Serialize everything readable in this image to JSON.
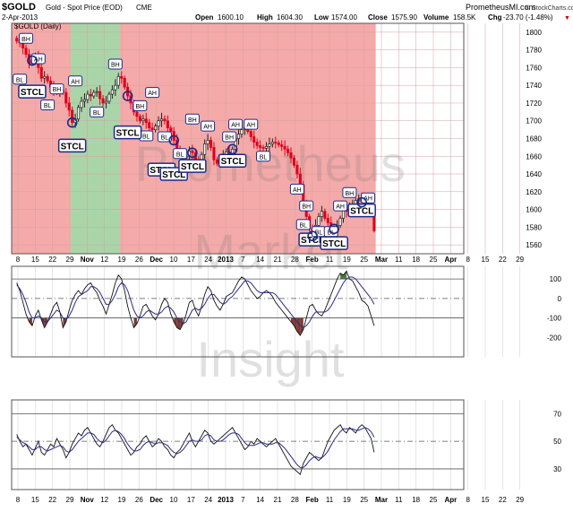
{
  "header": {
    "symbol": "$GOLD",
    "description": "Gold - Spot Price (EOD)",
    "exchange": "CME",
    "date": "2-Apr-2013",
    "open_label": "Open",
    "open": "1600.10",
    "high_label": "High",
    "high": "1604.30",
    "low_label": "Low",
    "low": "1574.00",
    "close_label": "Close",
    "close": "1575.90",
    "volume_label": "Volume",
    "volume": "158.5K",
    "chg_label": "Chg",
    "chg": "-23.70 (-1.48%)",
    "chg_arrow": "▼",
    "legend": "$GOLD (Daily)",
    "site": "PrometheusMI.com",
    "copyright": "© StockCharts.com"
  },
  "watermark": [
    "Prometheus",
    "Market",
    "Insight"
  ],
  "colors": {
    "bear_zone": "#f4aaa9",
    "bull_zone": "#a9d5a9",
    "up_candle": "#222222",
    "down_candle": "#e0001a",
    "cci_line": "#111111",
    "signal_line": "#2a2a8a",
    "fill_high": "#4a7a3a",
    "fill_low": "#7a3a32",
    "marker": "#1a2a8a",
    "chg_red": "#d00000"
  },
  "chart_data": [
    {
      "type": "candlestick",
      "title": "$GOLD (Daily)",
      "ylim": [
        1550,
        1810
      ],
      "y_ticks": [
        1560,
        1580,
        1600,
        1620,
        1640,
        1660,
        1680,
        1700,
        1720,
        1740,
        1760,
        1780,
        1800
      ],
      "x_tick_labels": [
        "8",
        "15",
        "22",
        "29",
        "Nov",
        "12",
        "19",
        "26",
        "Dec",
        "10",
        "17",
        "24",
        "2013",
        "7",
        "14",
        "21",
        "28",
        "Feb",
        "11",
        "19",
        "25",
        "Mar",
        "11",
        "18",
        "25",
        "Apr",
        "8",
        "15",
        "22",
        "29"
      ],
      "bold_x_ticks": [
        "Nov",
        "Dec",
        "2013",
        "Feb",
        "Mar",
        "Apr"
      ],
      "zones": [
        {
          "state": "bear",
          "from_day": 0,
          "to_day": 18
        },
        {
          "state": "bull",
          "from_day": 18,
          "to_day": 34
        },
        {
          "state": "bear",
          "from_day": 34,
          "to_day": 117
        }
      ],
      "closes": [
        1790,
        1788,
        1782,
        1775,
        1765,
        1768,
        1772,
        1760,
        1748,
        1750,
        1745,
        1738,
        1735,
        1733,
        1735,
        1732,
        1720,
        1712,
        1698,
        1702,
        1715,
        1722,
        1724,
        1730,
        1728,
        1732,
        1733,
        1725,
        1720,
        1722,
        1730,
        1735,
        1740,
        1750,
        1748,
        1738,
        1728,
        1720,
        1710,
        1705,
        1700,
        1702,
        1698,
        1692,
        1690,
        1694,
        1700,
        1702,
        1700,
        1692,
        1688,
        1678,
        1668,
        1662,
        1658,
        1660,
        1666,
        1664,
        1654,
        1650,
        1662,
        1674,
        1678,
        1670,
        1656,
        1652,
        1654,
        1660,
        1665,
        1662,
        1668,
        1680,
        1685,
        1690,
        1692,
        1688,
        1682,
        1676,
        1672,
        1670,
        1669,
        1671,
        1674,
        1676,
        1675,
        1673,
        1671,
        1668,
        1664,
        1658,
        1650,
        1640,
        1628,
        1605,
        1592,
        1578,
        1570,
        1582,
        1592,
        1598,
        1590,
        1585,
        1580,
        1578,
        1582,
        1590,
        1600,
        1598,
        1604,
        1605,
        1610,
        1612,
        1608,
        1602,
        1598,
        1600,
        1576
      ],
      "last_bar": {
        "open": 1600.1,
        "high": 1604.3,
        "low": 1574.0,
        "close": 1575.9
      },
      "annotations": [
        {
          "label": "BH",
          "day": 3,
          "price": 1793
        },
        {
          "label": "AH",
          "day": 7,
          "price": 1770
        },
        {
          "label": "BL",
          "day": 1,
          "price": 1747
        },
        {
          "label": "STCL",
          "day": 5,
          "price": 1733
        },
        {
          "label": "BH",
          "day": 13,
          "price": 1736
        },
        {
          "label": "AH",
          "day": 19,
          "price": 1745
        },
        {
          "label": "BL",
          "day": 10,
          "price": 1718
        },
        {
          "label": "STCL",
          "day": 18,
          "price": 1672
        },
        {
          "label": "BH",
          "day": 32,
          "price": 1764
        },
        {
          "label": "BL",
          "day": 26,
          "price": 1710
        },
        {
          "label": "AH",
          "day": 44,
          "price": 1732
        },
        {
          "label": "BH",
          "day": 40,
          "price": 1717
        },
        {
          "label": "BL",
          "day": 42,
          "price": 1683
        },
        {
          "label": "STCL",
          "day": 36,
          "price": 1687
        },
        {
          "label": "BL",
          "day": 48,
          "price": 1682
        },
        {
          "label": "STCL",
          "day": 47,
          "price": 1645
        },
        {
          "label": "BL",
          "day": 53,
          "price": 1663
        },
        {
          "label": "STCL",
          "day": 51,
          "price": 1640
        },
        {
          "label": "BH",
          "day": 57,
          "price": 1702
        },
        {
          "label": "AH",
          "day": 62,
          "price": 1694
        },
        {
          "label": "AH",
          "day": 71,
          "price": 1696
        },
        {
          "label": "AH",
          "day": 76,
          "price": 1696
        },
        {
          "label": "STCL",
          "day": 57,
          "price": 1649
        },
        {
          "label": "BH",
          "day": 69,
          "price": 1682
        },
        {
          "label": "BL",
          "day": 80,
          "price": 1660
        },
        {
          "label": "STCL",
          "day": 70,
          "price": 1655
        },
        {
          "label": "AH",
          "day": 91,
          "price": 1623
        },
        {
          "label": "BL",
          "day": 93,
          "price": 1583
        },
        {
          "label": "STCL",
          "day": 96,
          "price": 1566
        },
        {
          "label": "BH",
          "day": 94,
          "price": 1604
        },
        {
          "label": "BL",
          "day": 98,
          "price": 1575
        },
        {
          "label": "BL",
          "day": 102,
          "price": 1575
        },
        {
          "label": "STCL",
          "day": 103,
          "price": 1562
        },
        {
          "label": "AH",
          "day": 105,
          "price": 1604
        },
        {
          "label": "BH",
          "day": 108,
          "price": 1619
        },
        {
          "label": "AH",
          "day": 114,
          "price": 1613
        },
        {
          "label": "STCL",
          "day": 112,
          "price": 1599
        }
      ]
    },
    {
      "type": "line",
      "title": "",
      "ylim": [
        -300,
        165
      ],
      "y_ticks": [
        100,
        0,
        -100,
        -200
      ],
      "reference_lines": [
        100,
        0,
        -100
      ],
      "series": [
        {
          "name": "",
          "values": [
            80,
            40,
            -20,
            -80,
            -120,
            -140,
            -90,
            -60,
            -110,
            -150,
            -120,
            -80,
            -40,
            -20,
            -70,
            -150,
            -120,
            -60,
            -10,
            20,
            40,
            20,
            50,
            70,
            80,
            50,
            30,
            -10,
            -40,
            -80,
            -30,
            20,
            80,
            120,
            100,
            40,
            -40,
            -100,
            -150,
            -130,
            -90,
            -40,
            -30,
            -60,
            -90,
            -110,
            -80,
            -30,
            0,
            -20,
            -80,
            -120,
            -150,
            -160,
            -130,
            -80,
            -20,
            -10,
            -60,
            -90,
            -40,
            20,
            60,
            40,
            -10,
            -40,
            -60,
            -30,
            10,
            20,
            30,
            60,
            90,
            110,
            100,
            70,
            40,
            20,
            0,
            10,
            30,
            40,
            30,
            10,
            -20,
            -40,
            -60,
            -80,
            -100,
            -120,
            -140,
            -170,
            -190,
            -160,
            -100,
            -40,
            -30,
            -60,
            -80,
            -90,
            -60,
            -20,
            20,
            60,
            100,
            130,
            120,
            140,
            100,
            90,
            60,
            30,
            -10,
            -20,
            -40,
            -90,
            -140
          ]
        },
        {
          "name": "",
          "values": [
            70,
            50,
            20,
            -20,
            -70,
            -100,
            -100,
            -90,
            -100,
            -120,
            -120,
            -100,
            -80,
            -60,
            -70,
            -100,
            -110,
            -90,
            -60,
            -20,
            10,
            20,
            30,
            40,
            60,
            60,
            50,
            30,
            0,
            -30,
            -30,
            -10,
            20,
            60,
            80,
            70,
            40,
            -10,
            -60,
            -90,
            -100,
            -90,
            -70,
            -60,
            -70,
            -80,
            -80,
            -70,
            -50,
            -40,
            -50,
            -70,
            -100,
            -120,
            -130,
            -120,
            -90,
            -60,
            -50,
            -60,
            -50,
            -30,
            0,
            20,
            20,
            0,
            -20,
            -30,
            -20,
            0,
            10,
            30,
            50,
            70,
            90,
            90,
            80,
            60,
            40,
            30,
            30,
            30,
            30,
            30,
            20,
            0,
            -20,
            -40,
            -60,
            -80,
            -100,
            -120,
            -140,
            -150,
            -140,
            -120,
            -90,
            -70,
            -70,
            -70,
            -70,
            -60,
            -40,
            -10,
            20,
            50,
            80,
            100,
            110,
            110,
            100,
            80,
            60,
            40,
            20,
            0,
            -30
          ]
        }
      ]
    },
    {
      "type": "line",
      "title": "",
      "ylim": [
        15,
        80
      ],
      "y_ticks": [
        70,
        50,
        30
      ],
      "reference_lines": [
        70,
        50,
        30
      ],
      "series": [
        {
          "name": "",
          "values": [
            55,
            50,
            46,
            48,
            44,
            40,
            45,
            50,
            42,
            40,
            44,
            48,
            46,
            52,
            48,
            44,
            38,
            42,
            48,
            52,
            56,
            54,
            58,
            60,
            56,
            52,
            48,
            46,
            50,
            55,
            60,
            62,
            58,
            56,
            52,
            48,
            44,
            40,
            42,
            46,
            48,
            52,
            54,
            50,
            46,
            48,
            52,
            50,
            46,
            44,
            40,
            38,
            42,
            44,
            48,
            52,
            56,
            50,
            46,
            50,
            54,
            58,
            56,
            50,
            48,
            50,
            52,
            54,
            56,
            58,
            60,
            56,
            52,
            48,
            44,
            46,
            50,
            48,
            52,
            50,
            48,
            46,
            48,
            50,
            52,
            48,
            44,
            40,
            36,
            32,
            30,
            28,
            26,
            34,
            38,
            42,
            40,
            38,
            36,
            38,
            44,
            50,
            54,
            58,
            60,
            62,
            58,
            56,
            60,
            58,
            56,
            60,
            62,
            60,
            56,
            52,
            42
          ]
        },
        {
          "name": "",
          "values": [
            53,
            51,
            49,
            48,
            46,
            44,
            44,
            46,
            46,
            44,
            43,
            44,
            45,
            46,
            47,
            46,
            43,
            42,
            44,
            47,
            50,
            52,
            54,
            56,
            56,
            55,
            52,
            50,
            49,
            51,
            54,
            57,
            58,
            57,
            55,
            52,
            48,
            45,
            43,
            43,
            44,
            47,
            49,
            50,
            49,
            48,
            49,
            49,
            48,
            47,
            44,
            42,
            41,
            42,
            44,
            47,
            50,
            51,
            50,
            50,
            51,
            54,
            55,
            54,
            51,
            50,
            50,
            51,
            53,
            55,
            56,
            56,
            55,
            52,
            49,
            47,
            47,
            47,
            48,
            49,
            49,
            48,
            48,
            48,
            49,
            49,
            47,
            45,
            42,
            39,
            36,
            33,
            31,
            31,
            33,
            36,
            38,
            39,
            38,
            38,
            40,
            43,
            47,
            51,
            54,
            57,
            59,
            59,
            59,
            59,
            58,
            58,
            59,
            60,
            59,
            57,
            53
          ]
        }
      ]
    }
  ]
}
